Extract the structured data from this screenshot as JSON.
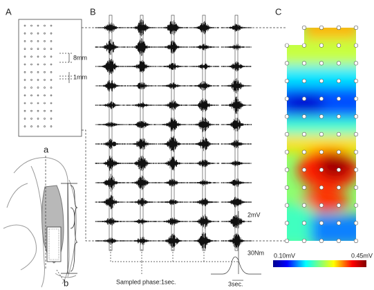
{
  "panels": {
    "a": {
      "label": "A",
      "spacing_label": "8mm",
      "electrode_label": "1mm",
      "marker_top": "a",
      "marker_bottom": "b"
    },
    "b": {
      "label": "B",
      "emg_scale": "2mV",
      "torque_scale": "30Nm",
      "time_scale": "3sec.",
      "caption": "Sampled phase:1sec."
    },
    "c": {
      "label": "C",
      "colorbar_min": "0.10mV",
      "colorbar_max": "0.45mV"
    }
  }
}
